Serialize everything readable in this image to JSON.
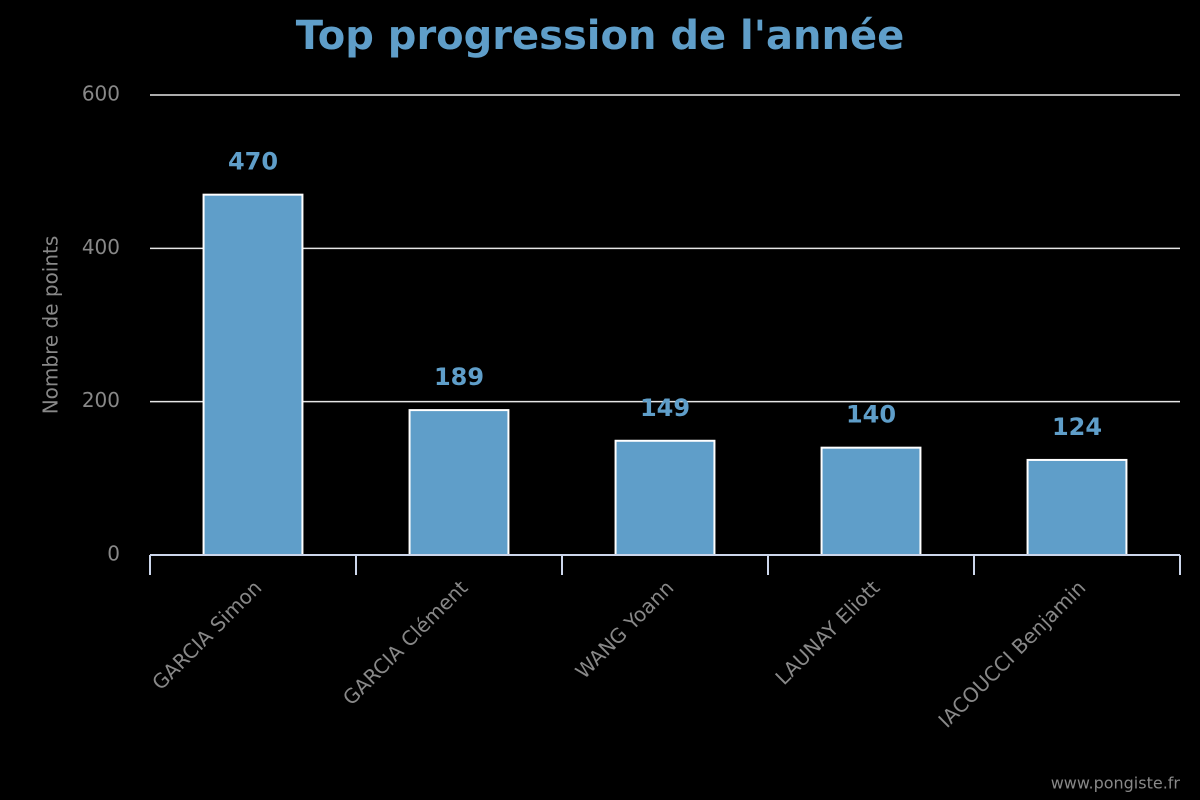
{
  "chart_data": {
    "type": "bar",
    "title": "Top progression de l'année",
    "y_label": "Nombre de points",
    "categories": [
      "GARCIA Simon",
      "GARCIA Clément",
      "WANG Yoann",
      "LAUNAY Eliott",
      "IACOUCCI Benjamin"
    ],
    "values": [
      470,
      189,
      149,
      140,
      124
    ],
    "color": "#5f9ec9",
    "ylim": [
      0,
      600
    ],
    "yticks": [
      0,
      200,
      400,
      600
    ],
    "grid": true,
    "credits": "www.pongiste.fr"
  }
}
